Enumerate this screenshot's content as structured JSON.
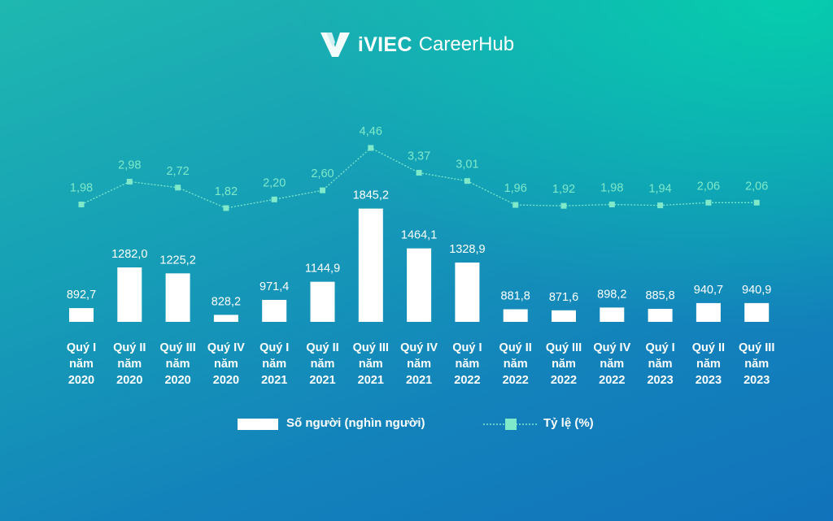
{
  "header": {
    "brand": "iVIEC",
    "subtitle": "CareerHub"
  },
  "colors": {
    "bar": "#ffffff",
    "line": "#7fe9c9",
    "text": "#ffffff"
  },
  "chart_data": {
    "type": "bar",
    "title": "",
    "categories": [
      [
        "Quý I",
        "năm",
        "2020"
      ],
      [
        "Quý II",
        "năm",
        "2020"
      ],
      [
        "Quý III",
        "năm",
        "2020"
      ],
      [
        "Quý IV",
        "năm",
        "2020"
      ],
      [
        "Quý I",
        "năm",
        "2021"
      ],
      [
        "Quý II",
        "năm",
        "2021"
      ],
      [
        "Quý III",
        "năm",
        "2021"
      ],
      [
        "Quý IV",
        "năm",
        "2021"
      ],
      [
        "Quý I",
        "năm",
        "2022"
      ],
      [
        "Quý II",
        "năm",
        "2022"
      ],
      [
        "Quý III",
        "năm",
        "2022"
      ],
      [
        "Quý IV",
        "năm",
        "2022"
      ],
      [
        "Quý I",
        "năm",
        "2023"
      ],
      [
        "Quý II",
        "năm",
        "2023"
      ],
      [
        "Quý III",
        "năm",
        "2023"
      ]
    ],
    "series": [
      {
        "name": "Số người (nghìn người)",
        "type": "bar",
        "values": [
          892.7,
          1282.0,
          1225.2,
          828.2,
          971.4,
          1144.9,
          1845.2,
          1464.1,
          1328.9,
          881.8,
          871.6,
          898.2,
          885.8,
          940.7,
          940.9
        ],
        "labels": [
          "892,7",
          "1282,0",
          "1225,2",
          "828,2",
          "971,4",
          "1144,9",
          "1845,2",
          "1464,1",
          "1328,9",
          "881,8",
          "871,6",
          "898,2",
          "885,8",
          "940,7",
          "940,9"
        ],
        "ylim": [
          800,
          1850
        ]
      },
      {
        "name": "Tỷ lệ (%)",
        "type": "line",
        "values": [
          1.98,
          2.98,
          2.72,
          1.82,
          2.2,
          2.6,
          4.46,
          3.37,
          3.01,
          1.96,
          1.92,
          1.98,
          1.94,
          2.06,
          2.06
        ],
        "labels": [
          "1,98",
          "2,98",
          "2,72",
          "1,82",
          "2,20",
          "2,60",
          "4,46",
          "3,37",
          "3,01",
          "1,96",
          "1,92",
          "1,98",
          "1,94",
          "2,06",
          "2,06"
        ],
        "ylim": [
          1.75,
          4.46
        ]
      }
    ],
    "xlabel": "",
    "ylabel": "",
    "grid": false,
    "legend_position": "bottom"
  },
  "legend": {
    "bar_label": "Số người (nghìn người)",
    "line_label": "Tỷ lệ (%)"
  }
}
